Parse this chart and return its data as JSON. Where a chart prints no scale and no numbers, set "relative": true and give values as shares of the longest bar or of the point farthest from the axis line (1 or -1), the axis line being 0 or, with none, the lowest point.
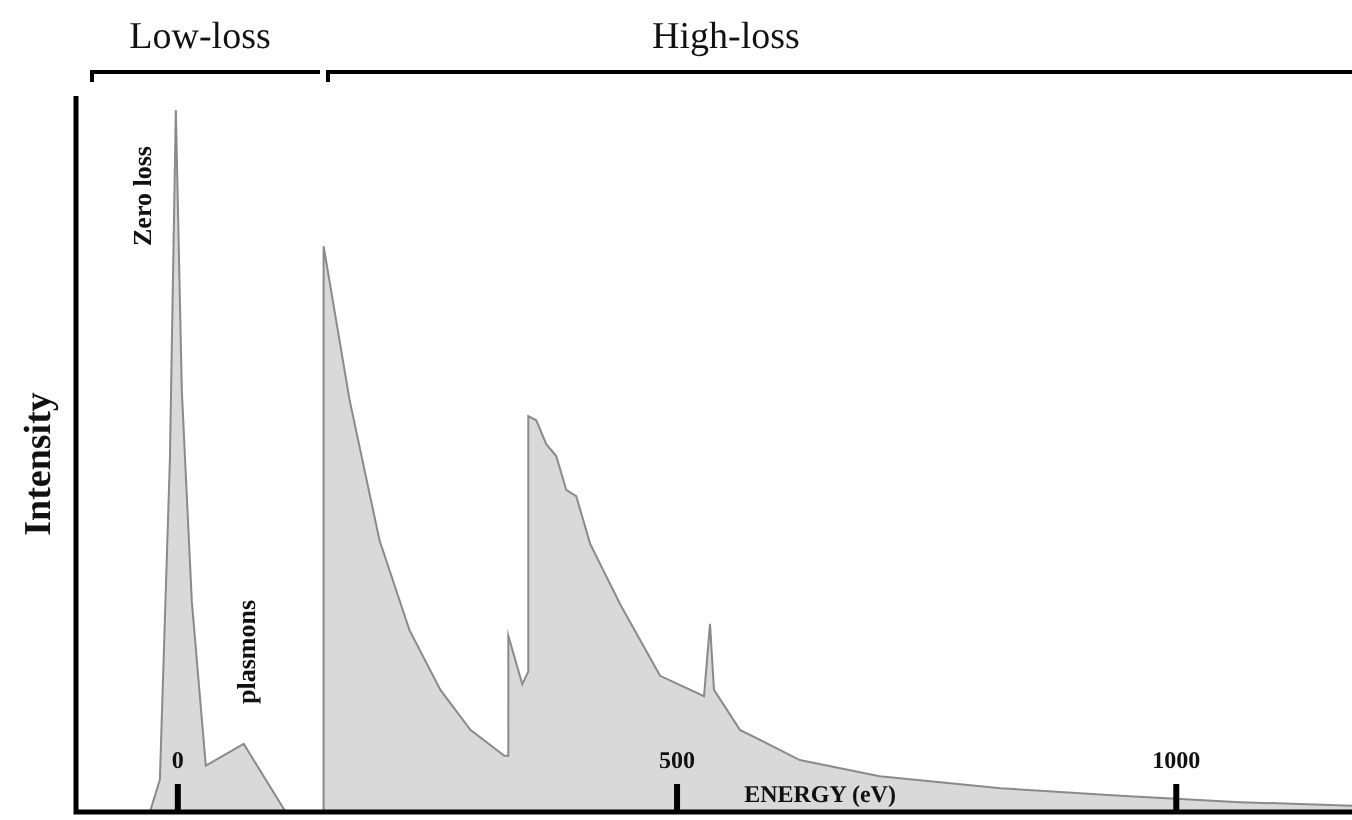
{
  "chart_data": {
    "type": "area",
    "relative": true,
    "xlabel": "ENERGY (eV)",
    "ylabel": "Intensity",
    "color": "#d9d9d9",
    "x": [
      -28,
      -18,
      -8,
      -2,
      4,
      14,
      28,
      66,
      108,
      146,
      146,
      172,
      202,
      232,
      263,
      293,
      327,
      331,
      331,
      345,
      351,
      351,
      359,
      369,
      379,
      389,
      399,
      413,
      443,
      483,
      527,
      533,
      537,
      563,
      623,
      703,
      824,
      944,
      1064,
      1176
    ],
    "values": [
      0,
      0.046,
      0.5,
      1,
      0.6,
      0.3,
      0.066,
      0.097,
      0,
      0,
      0.806,
      0.587,
      0.387,
      0.259,
      0.174,
      0.117,
      0.08,
      0.08,
      0.251,
      0.182,
      0.2,
      0.564,
      0.558,
      0.524,
      0.507,
      0.459,
      0.45,
      0.382,
      0.296,
      0.194,
      0.165,
      0.268,
      0.174,
      0.117,
      0.074,
      0.051,
      0.034,
      0.023,
      0.014,
      0.009
    ],
    "xlim": [
      -102,
      1176
    ],
    "xticks": [
      0,
      500,
      1000
    ],
    "annotations": [
      "Low-loss",
      "High-loss",
      "Zero loss",
      "plasmons"
    ]
  }
}
